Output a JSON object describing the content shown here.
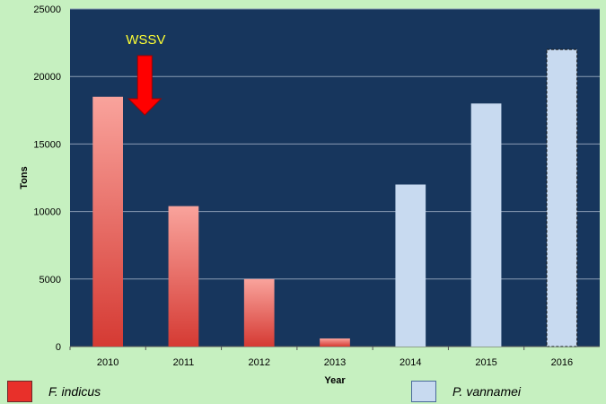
{
  "chart_data": {
    "type": "bar",
    "categories": [
      "2010",
      "2011",
      "2012",
      "2013",
      "2014",
      "2015",
      "2016"
    ],
    "values": [
      18500,
      10400,
      5000,
      600,
      12000,
      18000,
      22000
    ],
    "series_of_category": [
      "F. indicus",
      "F. indicus",
      "F. indicus",
      "F. indicus",
      "P. vannamei",
      "P. vannamei",
      "P. vannamei"
    ],
    "xlabel": "Year",
    "ylabel": "Tons",
    "ylim": [
      0,
      25000
    ],
    "yticks": [
      "0",
      "5000",
      "10000",
      "15000",
      "20000",
      "25000"
    ],
    "grid": true,
    "legend": [
      {
        "name": "F. indicus",
        "color": "#e8302a"
      },
      {
        "name": "P. vannamei",
        "color": "#c8daf0"
      }
    ],
    "annotation": {
      "text": "WSSV",
      "arrow": "down",
      "color": "#ff0000",
      "text_color": "#ffff33"
    },
    "colors": {
      "plot_bg": "#17365d",
      "page_bg": "#c6f0c0",
      "grid": "#8a9bb3",
      "bar_f_indicus_top": "#f9a39c",
      "bar_f_indicus_bottom": "#d53a33",
      "bar_p_vannamei": "#c8daf0"
    }
  }
}
